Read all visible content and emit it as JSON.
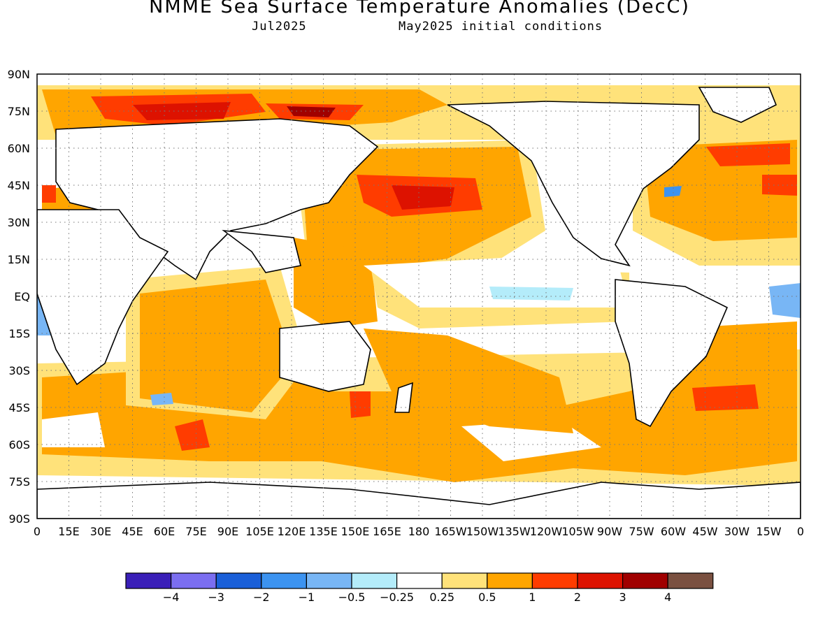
{
  "header": {
    "title": "NMME Sea Surface Temperature Anomalies (DecC)",
    "target_month": "Jul2025",
    "initial_conditions": "May2025 initial conditions"
  },
  "map": {
    "projection": "equirectangular",
    "lon_labels": [
      "0",
      "15E",
      "30E",
      "45E",
      "60E",
      "75E",
      "90E",
      "105E",
      "120E",
      "135E",
      "150E",
      "165E",
      "180",
      "165W",
      "150W",
      "135W",
      "120W",
      "105W",
      "90W",
      "75W",
      "60W",
      "45W",
      "30W",
      "15W",
      "0"
    ],
    "lat_labels": [
      "90N",
      "75N",
      "60N",
      "45N",
      "30N",
      "15N",
      "EQ",
      "15S",
      "30S",
      "45S",
      "60S",
      "75S",
      "90S"
    ],
    "grid": "dotted"
  },
  "colorbar": {
    "colors": [
      "#3a1fb8",
      "#7b6ef0",
      "#1a5fd8",
      "#3c93f0",
      "#78b6f5",
      "#b4ecfa",
      "#ffffff",
      "#ffe27a",
      "#ffa500",
      "#ff3c00",
      "#dd1200",
      "#a00000",
      "#7a5040"
    ],
    "labels": [
      "−4",
      "−3",
      "−2",
      "−1",
      "−0.5",
      "−0.25",
      "0.25",
      "0.5",
      "1",
      "2",
      "3",
      "4"
    ]
  }
}
